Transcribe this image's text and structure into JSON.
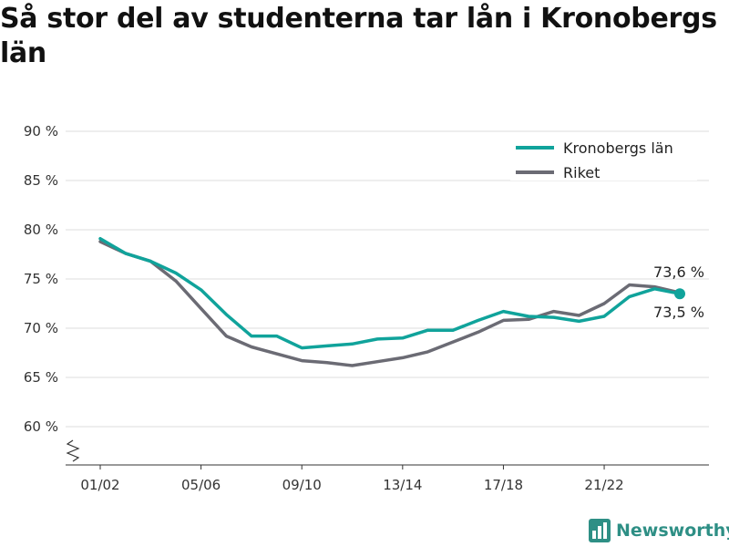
{
  "title": "Så stor del av studenterna tar lån i Kronobergs län",
  "brand": {
    "name": "Newsworthy",
    "icon": "bar-chart-logo-icon",
    "color": "#2e8f85"
  },
  "chart_data": {
    "type": "line",
    "title": "Så stor del av studenterna tar lån i Kronobergs län",
    "xlabel": "",
    "ylabel": "",
    "x": [
      "01/02",
      "02/03",
      "03/04",
      "04/05",
      "05/06",
      "06/07",
      "07/08",
      "08/09",
      "09/10",
      "10/11",
      "11/12",
      "12/13",
      "13/14",
      "14/15",
      "15/16",
      "16/17",
      "17/18",
      "18/19",
      "19/20",
      "20/21",
      "21/22",
      "22/23",
      "23/24",
      "24/25"
    ],
    "x_tick_labels": [
      "01/02",
      "05/06",
      "09/10",
      "13/14",
      "17/18",
      "21/22"
    ],
    "y_ticks": [
      60,
      65,
      70,
      75,
      80,
      85,
      90
    ],
    "y_tick_labels": [
      "60 %",
      "65 %",
      "70 %",
      "75 %",
      "80 %",
      "85 %",
      "90 %"
    ],
    "ylim": [
      56,
      90
    ],
    "y_axis_break": true,
    "grid": true,
    "legend_position": "top-right",
    "series": [
      {
        "name": "Kronobergs län",
        "color": "#10a39b",
        "values": [
          79.1,
          77.6,
          76.8,
          75.6,
          73.9,
          71.4,
          69.2,
          69.2,
          68.0,
          68.2,
          68.4,
          68.9,
          69.0,
          69.8,
          69.8,
          70.8,
          71.7,
          71.2,
          71.1,
          70.7,
          71.2,
          73.2,
          74.0,
          73.5
        ],
        "end_label": "73,5 %"
      },
      {
        "name": "Riket",
        "color": "#6b6b74",
        "values": [
          78.8,
          77.6,
          76.8,
          74.8,
          72.0,
          69.2,
          68.1,
          67.4,
          66.7,
          66.5,
          66.2,
          66.6,
          67.0,
          67.6,
          68.6,
          69.6,
          70.8,
          70.9,
          71.7,
          71.3,
          72.5,
          74.4,
          74.2,
          73.6
        ],
        "end_label": "73,6 %"
      }
    ]
  }
}
